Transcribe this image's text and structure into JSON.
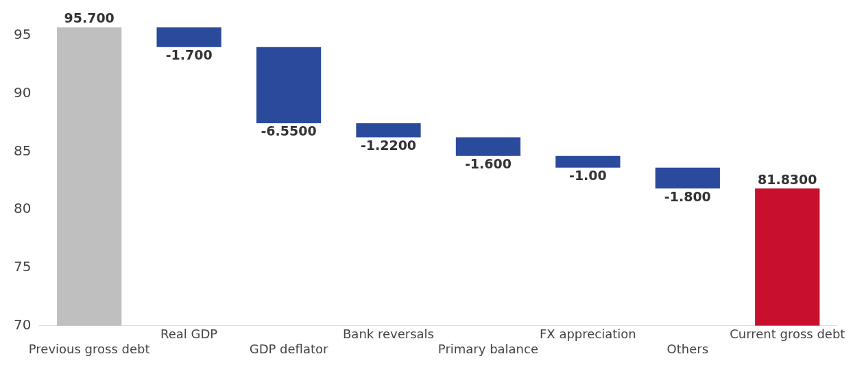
{
  "chart_data": {
    "type": "bar",
    "categories": [
      "Previous gross debt",
      "Real GDP",
      "GDP deflator",
      "Bank reversals",
      "Primary balance",
      "FX appreciation",
      "Others",
      "Current gross debt"
    ],
    "values": [
      95.7,
      -1.7,
      -6.55,
      -1.22,
      -1.6,
      -1.0,
      -1.8,
      81.83
    ],
    "base": [
      null,
      95.7,
      94.0,
      87.45,
      86.23,
      84.63,
      83.63,
      null
    ],
    "colors": [
      "#bfbfbf",
      "#2a4a9b",
      "#2a4a9b",
      "#2a4a9b",
      "#2a4a9b",
      "#2a4a9b",
      "#2a4a9b",
      "#c8102e"
    ],
    "value_labels": [
      "95.700",
      "-1.700",
      "-6.5500",
      "-1.2200",
      "-1.600",
      "-1.00",
      "-1.800",
      "81.8300"
    ],
    "ylim": [
      70,
      95.7
    ],
    "yticks": [
      70,
      75,
      80,
      85,
      90,
      95
    ],
    "grid": false,
    "legend": false
  }
}
